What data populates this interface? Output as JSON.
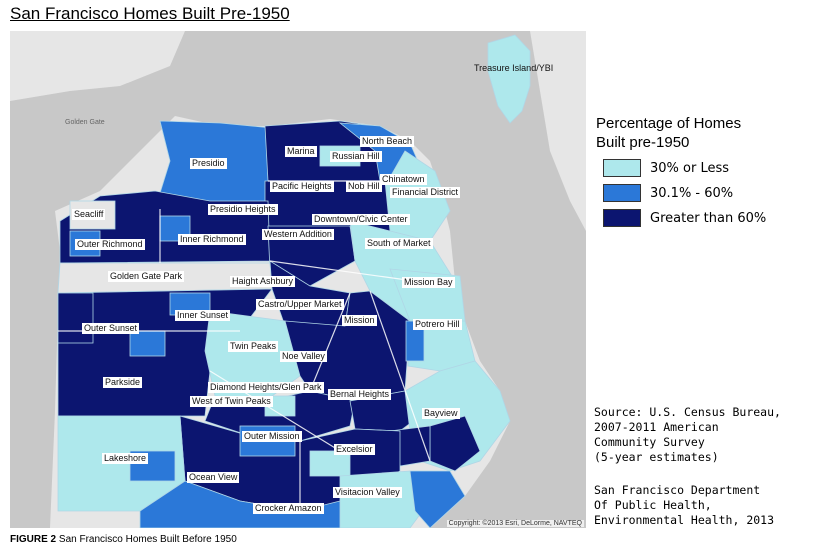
{
  "title": "San Francisco Homes Built Pre-1950",
  "colors": {
    "low": "#aee8ec",
    "mid": "#2b78d8",
    "high": "#0c1570",
    "land": "#e6e6e6",
    "water": "#c8c8c8",
    "border": "#b0d6e6"
  },
  "legend": {
    "title_line1": "Percentage of Homes",
    "title_line2": "Built pre-1950",
    "items": [
      {
        "label": "30% or Less",
        "color": "#aee8ec"
      },
      {
        "label": "30.1% - 60%",
        "color": "#2b78d8"
      },
      {
        "label": "Greater than 60%",
        "color": "#0c1570"
      }
    ]
  },
  "water_labels": {
    "golden_gate": "Golden Gate"
  },
  "neighborhoods": {
    "treasure_island": "Treasure Island/YBI",
    "north_beach": "North Beach",
    "marina": "Marina",
    "russian_hill": "Russian Hill",
    "chinatown": "Chinatown",
    "presidio": "Presidio",
    "pacific_heights": "Pacific Heights",
    "nob_hill": "Nob Hill",
    "financial_district": "Financial District",
    "seacliff": "Seacliff",
    "presidio_heights": "Presidio Heights",
    "downtown_civic_center": "Downtown/Civic Center",
    "outer_richmond": "Outer Richmond",
    "inner_richmond": "Inner Richmond",
    "western_addition": "Western Addition",
    "south_of_market": "South of Market",
    "golden_gate_park": "Golden Gate Park",
    "haight_ashbury": "Haight Ashbury",
    "mission_bay": "Mission Bay",
    "castro_upper_market": "Castro/Upper Market",
    "inner_sunset": "Inner Sunset",
    "outer_sunset": "Outer Sunset",
    "mission": "Mission",
    "potrero_hill": "Potrero Hill",
    "twin_peaks": "Twin Peaks",
    "noe_valley": "Noe Valley",
    "parkside": "Parkside",
    "diamond_heights_glen_park": "Diamond Heights/Glen Park",
    "bernal_heights": "Bernal Heights",
    "west_of_twin_peaks": "West of Twin Peaks",
    "bayview": "Bayview",
    "outer_mission": "Outer Mission",
    "lakeshore": "Lakeshore",
    "excelsior": "Excelsior",
    "ocean_view": "Ocean View",
    "visitacion_valley": "Visitacion Valley",
    "crocker_amazon": "Crocker Amazon"
  },
  "copyright": "Copyright: ©2013 Esri, DeLorme, NAVTEQ",
  "source": {
    "line1": "Source: U.S. Census Bureau,",
    "line2": "2007-2011 American",
    "line3": "Community Survey",
    "line4": "(5-year estimates)"
  },
  "department": {
    "line1": "San Francisco Department",
    "line2": "Of Public Health,",
    "line3": "Environmental Health, 2013"
  },
  "caption": {
    "prefix": "FIGURE 2",
    "text": " San Francisco Homes Built Before 1950"
  }
}
